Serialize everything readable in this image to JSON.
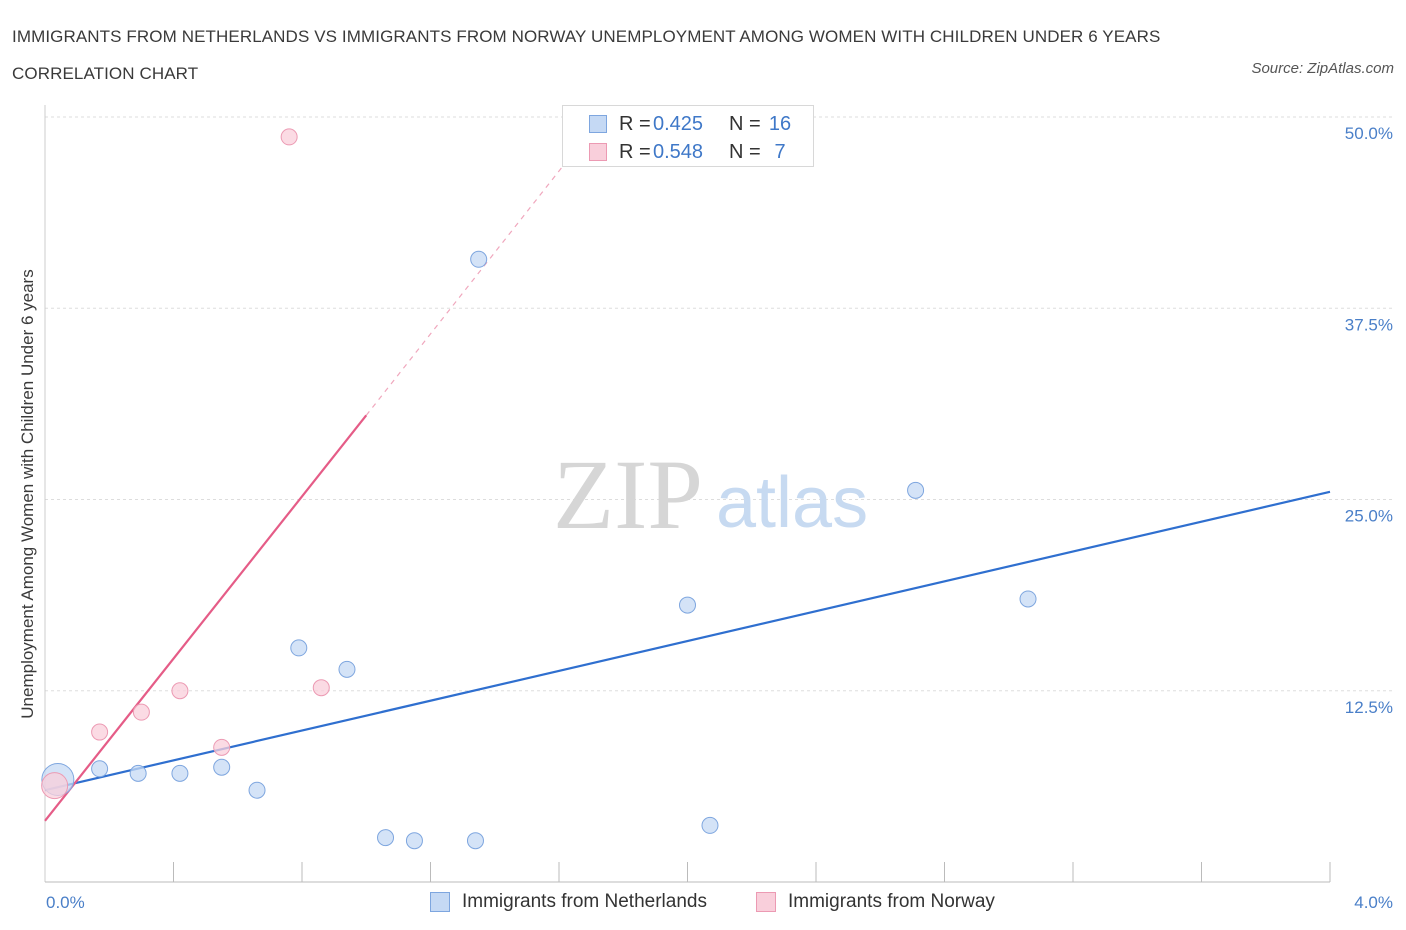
{
  "title": "IMMIGRANTS FROM NETHERLANDS VS IMMIGRANTS FROM NORWAY UNEMPLOYMENT AMONG WOMEN WITH CHILDREN UNDER 6 YEARS CORRELATION CHART",
  "source": "Source: ZipAtlas.com",
  "watermark": {
    "zip": "ZIP",
    "atlas": "atlas"
  },
  "legend": {
    "netherlands": {
      "r_label": "R =",
      "r_value": "0.425",
      "n_label": "N =",
      "n_value": "16"
    },
    "norway": {
      "r_label": "R =",
      "r_value": "0.548",
      "n_label": "N =",
      "n_value": "7"
    }
  },
  "colors": {
    "netherlands_fill": "#c5d9f4",
    "netherlands_stroke": "#7ea6df",
    "netherlands_line": "#2f6fcf",
    "norway_fill": "#f9cfdb",
    "norway_stroke": "#ec9ab3",
    "norway_line": "#e55c87",
    "grid": "#dddddd",
    "tick": "#4a7fc8"
  },
  "chart_data": {
    "type": "scatter",
    "title": "IMMIGRANTS FROM NETHERLANDS VS IMMIGRANTS FROM NORWAY UNEMPLOYMENT AMONG WOMEN WITH CHILDREN UNDER 6 YEARS CORRELATION CHART",
    "xlabel": "",
    "ylabel": "Unemployment Among Women with Children Under 6 years",
    "xlim": [
      0,
      4.0
    ],
    "ylim": [
      0,
      50.0
    ],
    "x_ticks": [
      "0.0%",
      "4.0%"
    ],
    "y_ticks": [
      {
        "value": 12.5,
        "label": "12.5%"
      },
      {
        "value": 25.0,
        "label": "25.0%"
      },
      {
        "value": 37.5,
        "label": "37.5%"
      },
      {
        "value": 50.0,
        "label": "50.0%"
      }
    ],
    "grid": true,
    "legend_position": "bottom",
    "series": [
      {
        "name": "Immigrants from Netherlands",
        "r": 0.425,
        "n": 16,
        "points": [
          {
            "x": 0.04,
            "y": 6.7,
            "size": "large"
          },
          {
            "x": 0.17,
            "y": 7.4
          },
          {
            "x": 0.29,
            "y": 7.1
          },
          {
            "x": 0.42,
            "y": 7.1
          },
          {
            "x": 0.55,
            "y": 7.5
          },
          {
            "x": 0.66,
            "y": 6.0
          },
          {
            "x": 0.79,
            "y": 15.3
          },
          {
            "x": 0.94,
            "y": 13.9
          },
          {
            "x": 1.06,
            "y": 2.9
          },
          {
            "x": 1.15,
            "y": 2.7
          },
          {
            "x": 1.34,
            "y": 2.7
          },
          {
            "x": 1.35,
            "y": 40.7
          },
          {
            "x": 2.0,
            "y": 18.1
          },
          {
            "x": 2.07,
            "y": 3.7
          },
          {
            "x": 2.71,
            "y": 25.6
          },
          {
            "x": 3.06,
            "y": 18.5
          }
        ],
        "trend": {
          "x0": 0.0,
          "y0": 6.0,
          "x1": 4.0,
          "y1": 25.5
        }
      },
      {
        "name": "Immigrants from Norway",
        "r": 0.548,
        "n": 7,
        "points": [
          {
            "x": 0.03,
            "y": 6.3,
            "size": "medium"
          },
          {
            "x": 0.17,
            "y": 9.8
          },
          {
            "x": 0.3,
            "y": 11.1
          },
          {
            "x": 0.42,
            "y": 12.5
          },
          {
            "x": 0.55,
            "y": 8.8
          },
          {
            "x": 0.76,
            "y": 48.7
          },
          {
            "x": 0.86,
            "y": 12.7
          }
        ],
        "trend": {
          "x0": 0.0,
          "y0": 4.0,
          "x1": 1.0,
          "y1": 30.5,
          "dashed_to": {
            "x": 1.62,
            "y": 47.0
          }
        }
      }
    ]
  }
}
